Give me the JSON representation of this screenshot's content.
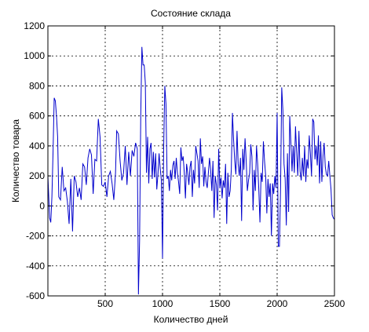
{
  "chart_data": {
    "type": "line",
    "title": "Состояние склада",
    "xlabel": "Количество дней",
    "ylabel": "Количество товара",
    "xlim": [
      0,
      2500
    ],
    "ylim": [
      -600,
      1200
    ],
    "grid": true,
    "x_ticks": [
      500,
      1000,
      1500,
      2000,
      2500
    ],
    "x_tick_labels": [
      "500",
      "1000",
      "1500",
      "2000",
      "2500"
    ],
    "y_ticks": [
      -600,
      -400,
      -200,
      0,
      200,
      400,
      600,
      800,
      1000,
      1200
    ],
    "y_tick_labels": [
      "-600",
      "-400",
      "-200",
      "0",
      "200",
      "400",
      "600",
      "800",
      "1000",
      "1200"
    ],
    "series": [
      {
        "color": "#0000cc",
        "points": [
          [
            0,
            200
          ],
          [
            15,
            -80
          ],
          [
            25,
            -110
          ],
          [
            35,
            60
          ],
          [
            45,
            360
          ],
          [
            55,
            720
          ],
          [
            65,
            700
          ],
          [
            75,
            600
          ],
          [
            85,
            460
          ],
          [
            95,
            60
          ],
          [
            110,
            40
          ],
          [
            125,
            260
          ],
          [
            140,
            100
          ],
          [
            155,
            120
          ],
          [
            170,
            30
          ],
          [
            185,
            -120
          ],
          [
            200,
            180
          ],
          [
            215,
            -170
          ],
          [
            230,
            200
          ],
          [
            245,
            160
          ],
          [
            260,
            60
          ],
          [
            275,
            120
          ],
          [
            290,
            40
          ],
          [
            305,
            280
          ],
          [
            320,
            260
          ],
          [
            335,
            140
          ],
          [
            350,
            320
          ],
          [
            365,
            380
          ],
          [
            380,
            340
          ],
          [
            395,
            80
          ],
          [
            410,
            310
          ],
          [
            425,
            300
          ],
          [
            440,
            580
          ],
          [
            455,
            460
          ],
          [
            470,
            140
          ],
          [
            485,
            130
          ],
          [
            500,
            160
          ],
          [
            515,
            60
          ],
          [
            530,
            200
          ],
          [
            545,
            230
          ],
          [
            560,
            150
          ],
          [
            575,
            40
          ],
          [
            590,
            220
          ],
          [
            600,
            500
          ],
          [
            615,
            480
          ],
          [
            630,
            300
          ],
          [
            645,
            170
          ],
          [
            660,
            220
          ],
          [
            675,
            400
          ],
          [
            690,
            140
          ],
          [
            705,
            360
          ],
          [
            720,
            200
          ],
          [
            735,
            370
          ],
          [
            750,
            330
          ],
          [
            765,
            420
          ],
          [
            780,
            380
          ],
          [
            790,
            -590
          ],
          [
            800,
            -230
          ],
          [
            810,
            600
          ],
          [
            820,
            1060
          ],
          [
            830,
            940
          ],
          [
            840,
            940
          ],
          [
            850,
            820
          ],
          [
            860,
            220
          ],
          [
            870,
            460
          ],
          [
            880,
            150
          ],
          [
            890,
            380
          ],
          [
            900,
            420
          ],
          [
            910,
            180
          ],
          [
            920,
            360
          ],
          [
            930,
            190
          ],
          [
            940,
            350
          ],
          [
            950,
            110
          ],
          [
            960,
            210
          ],
          [
            970,
            350
          ],
          [
            980,
            250
          ],
          [
            990,
            170
          ],
          [
            1000,
            -350
          ],
          [
            1010,
            380
          ],
          [
            1020,
            800
          ],
          [
            1030,
            680
          ],
          [
            1040,
            180
          ],
          [
            1050,
            200
          ],
          [
            1060,
            100
          ],
          [
            1070,
            240
          ],
          [
            1080,
            170
          ],
          [
            1090,
            270
          ],
          [
            1100,
            300
          ],
          [
            1110,
            180
          ],
          [
            1120,
            320
          ],
          [
            1130,
            220
          ],
          [
            1140,
            160
          ],
          [
            1150,
            80
          ],
          [
            1160,
            390
          ],
          [
            1170,
            300
          ],
          [
            1180,
            330
          ],
          [
            1190,
            220
          ],
          [
            1200,
            50
          ],
          [
            1210,
            280
          ],
          [
            1220,
            220
          ],
          [
            1230,
            140
          ],
          [
            1240,
            260
          ],
          [
            1250,
            300
          ],
          [
            1260,
            60
          ],
          [
            1270,
            240
          ],
          [
            1280,
            150
          ],
          [
            1290,
            400
          ],
          [
            1300,
            350
          ],
          [
            1310,
            300
          ],
          [
            1320,
            120
          ],
          [
            1330,
            450
          ],
          [
            1340,
            280
          ],
          [
            1350,
            330
          ],
          [
            1360,
            130
          ],
          [
            1370,
            260
          ],
          [
            1380,
            160
          ],
          [
            1390,
            120
          ],
          [
            1400,
            220
          ],
          [
            1410,
            320
          ],
          [
            1420,
            240
          ],
          [
            1430,
            100
          ],
          [
            1440,
            300
          ],
          [
            1450,
            -80
          ],
          [
            1460,
            200
          ],
          [
            1470,
            140
          ],
          [
            1480,
            -30
          ],
          [
            1490,
            380
          ],
          [
            1500,
            120
          ],
          [
            1510,
            190
          ],
          [
            1520,
            50
          ],
          [
            1530,
            170
          ],
          [
            1540,
            120
          ],
          [
            1550,
            280
          ],
          [
            1560,
            -120
          ],
          [
            1570,
            220
          ],
          [
            1580,
            60
          ],
          [
            1590,
            100
          ],
          [
            1600,
            240
          ],
          [
            1610,
            620
          ],
          [
            1620,
            440
          ],
          [
            1630,
            300
          ],
          [
            1640,
            210
          ],
          [
            1650,
            500
          ],
          [
            1660,
            280
          ],
          [
            1670,
            200
          ],
          [
            1680,
            320
          ],
          [
            1690,
            -100
          ],
          [
            1700,
            380
          ],
          [
            1710,
            240
          ],
          [
            1720,
            450
          ],
          [
            1730,
            300
          ],
          [
            1740,
            100
          ],
          [
            1750,
            170
          ],
          [
            1760,
            220
          ],
          [
            1770,
            410
          ],
          [
            1780,
            330
          ],
          [
            1790,
            -30
          ],
          [
            1800,
            240
          ],
          [
            1810,
            100
          ],
          [
            1820,
            400
          ],
          [
            1830,
            280
          ],
          [
            1840,
            110
          ],
          [
            1850,
            -110
          ],
          [
            1860,
            220
          ],
          [
            1870,
            160
          ],
          [
            1880,
            430
          ],
          [
            1890,
            300
          ],
          [
            1900,
            200
          ],
          [
            1910,
            -50
          ],
          [
            1920,
            180
          ],
          [
            1930,
            60
          ],
          [
            1940,
            150
          ],
          [
            1950,
            -200
          ],
          [
            1960,
            150
          ],
          [
            1970,
            80
          ],
          [
            1980,
            200
          ],
          [
            1990,
            120
          ],
          [
            2000,
            620
          ],
          [
            2010,
            -270
          ],
          [
            2020,
            -270
          ],
          [
            2030,
            120
          ],
          [
            2040,
            790
          ],
          [
            2050,
            640
          ],
          [
            2060,
            280
          ],
          [
            2070,
            180
          ],
          [
            2080,
            -130
          ],
          [
            2090,
            350
          ],
          [
            2100,
            -40
          ],
          [
            2110,
            600
          ],
          [
            2120,
            420
          ],
          [
            2130,
            230
          ],
          [
            2140,
            400
          ],
          [
            2150,
            220
          ],
          [
            2160,
            530
          ],
          [
            2170,
            360
          ],
          [
            2180,
            200
          ],
          [
            2190,
            500
          ],
          [
            2200,
            230
          ],
          [
            2210,
            170
          ],
          [
            2220,
            320
          ],
          [
            2230,
            200
          ],
          [
            2240,
            400
          ],
          [
            2250,
            160
          ],
          [
            2260,
            310
          ],
          [
            2270,
            250
          ],
          [
            2280,
            470
          ],
          [
            2290,
            350
          ],
          [
            2300,
            200
          ],
          [
            2310,
            580
          ],
          [
            2320,
            560
          ],
          [
            2330,
            310
          ],
          [
            2340,
            400
          ],
          [
            2350,
            270
          ],
          [
            2360,
            470
          ],
          [
            2370,
            150
          ],
          [
            2380,
            430
          ],
          [
            2390,
            160
          ],
          [
            2400,
            330
          ],
          [
            2410,
            420
          ],
          [
            2420,
            260
          ],
          [
            2430,
            210
          ],
          [
            2440,
            200
          ],
          [
            2450,
            300
          ],
          [
            2460,
            200
          ],
          [
            2470,
            110
          ],
          [
            2480,
            -60
          ],
          [
            2490,
            -80
          ],
          [
            2500,
            -90
          ]
        ]
      }
    ]
  }
}
